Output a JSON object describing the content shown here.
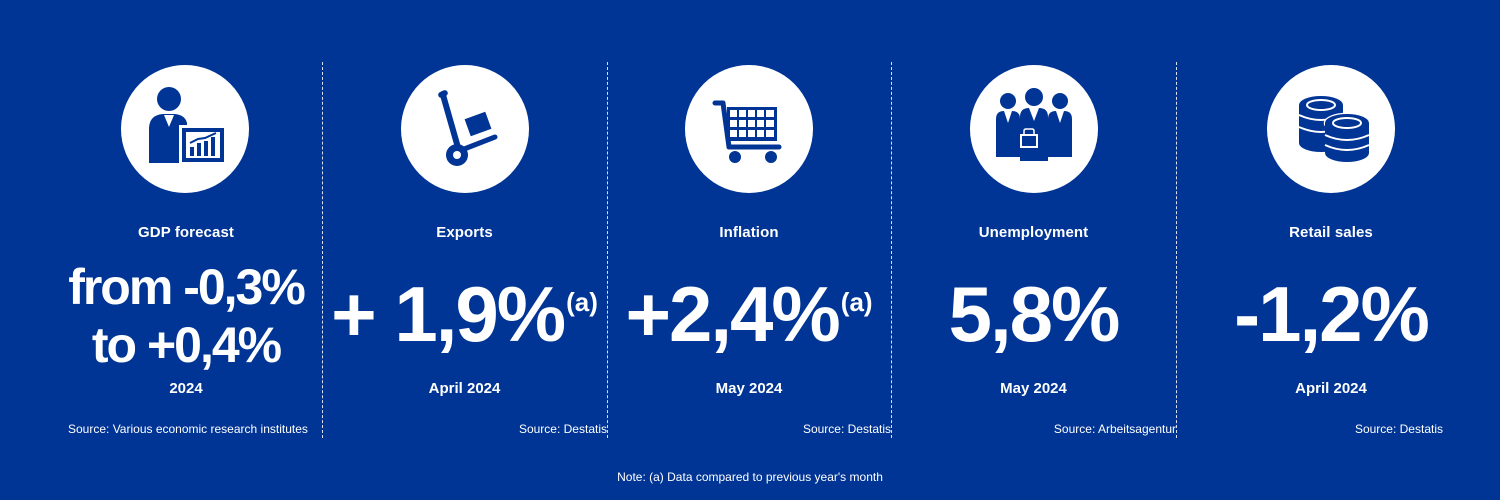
{
  "panels": [
    {
      "icon": "analyst-chart-icon",
      "category": "GDP forecast",
      "value_line1": "from -0,3%",
      "value_line2": "to +0,4%",
      "period": "2024",
      "source": "Source: Various economic research institutes"
    },
    {
      "icon": "hand-truck-icon",
      "category": "Exports",
      "value": "+ 1,9%",
      "value_note": "(a)",
      "period": "April 2024",
      "source": "Source: Destatis"
    },
    {
      "icon": "shopping-cart-icon",
      "category": "Inflation",
      "value": "+2,4%",
      "value_note": "(a)",
      "period": "May 2024",
      "source": "Source: Destatis"
    },
    {
      "icon": "people-group-icon",
      "category": "Unemployment",
      "value": "5,8%",
      "period": "May 2024",
      "source": "Source: Arbeitsagentur"
    },
    {
      "icon": "coins-icon",
      "category": "Retail sales",
      "value": "-1,2%",
      "period": "April 2024",
      "source": "Source: Destatis"
    }
  ],
  "note": "Note: (a) Data compared to previous year's month",
  "colors": {
    "background": "#003595",
    "foreground": "#ffffff"
  }
}
